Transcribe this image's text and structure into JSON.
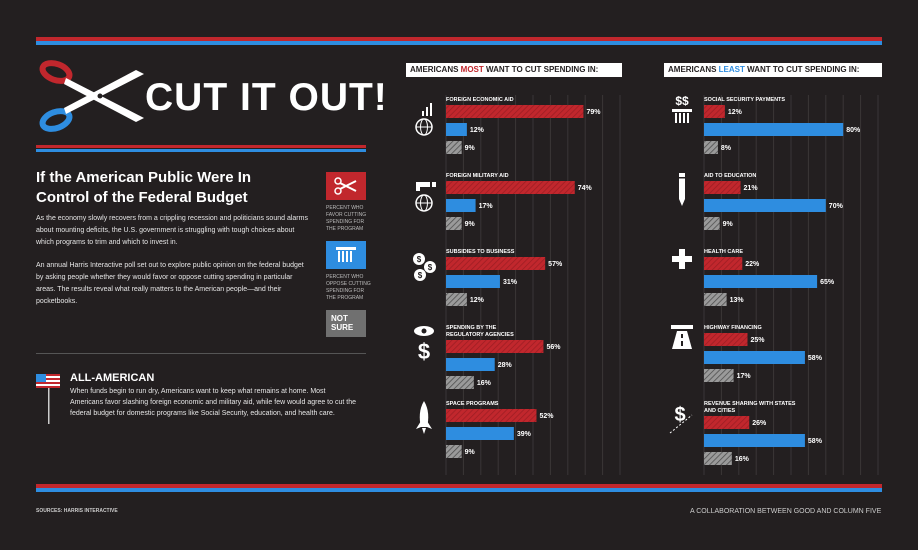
{
  "title": "CUT IT OUT!",
  "headline": "If the American Public Were In Control of the Federal Budget",
  "intro_1": "As the economy slowly recovers from a crippling recession and politicians sound alarms about mounting deficits, the U.S. government is struggling with tough choices about which programs to trim and which to invest in.",
  "intro_2": "An annual Harris Interactive poll set out to explore public opinion on the federal budget by asking people whether they would favor or oppose cutting spending in particular areas. The results reveal what really matters to the American people—and their pocketbooks.",
  "legend": {
    "favor": "PERCENT WHO FAVOR CUTTING SPENDING FOR THE PROGRAM",
    "oppose": "PERCENT WHO OPPOSE CUTTING SPENDING FOR THE PROGRAM",
    "not_sure": "NOT SURE"
  },
  "all_american": {
    "title": "ALL-AMERICAN",
    "text": "When funds begin to run dry, Americans want to keep what remains at home. Most Americans favor slashing foreign economic and military aid, while few would agree to cut the federal budget for domestic programs like Social Security, education, and health care."
  },
  "sources": "SOURCES: HARRIS INTERACTIVE",
  "credit": "A COLLABORATION BETWEEN GOOD AND COLUMN FIVE",
  "colors": {
    "favor": "#c1272d",
    "oppose": "#2e8de0",
    "not_sure": "#8a8a8a",
    "background": "#231f20"
  },
  "chart_data": [
    {
      "type": "bar",
      "title_prefix": "AMERICANS ",
      "title_highlight": "MOST",
      "title_suffix": " WANT TO CUT SPENDING IN:",
      "series_names": [
        "Favor cutting",
        "Oppose cutting",
        "Not sure"
      ],
      "unit": "%",
      "xlim": [
        0,
        100
      ],
      "groups": [
        {
          "label": "FOREIGN ECONOMIC AID",
          "icon": "globe-chart-icon",
          "values": [
            79,
            12,
            9
          ]
        },
        {
          "label": "FOREIGN MILITARY AID",
          "icon": "globe-gun-icon",
          "values": [
            74,
            17,
            9
          ]
        },
        {
          "label": "SUBSIDIES TO BUSINESS",
          "icon": "coins-icon",
          "values": [
            57,
            31,
            12
          ]
        },
        {
          "label": "SPENDING BY THE REGULATORY AGENCIES",
          "icon": "eye-dollar-icon",
          "values": [
            56,
            28,
            16
          ]
        },
        {
          "label": "SPACE PROGRAMS",
          "icon": "rocket-icon",
          "values": [
            52,
            39,
            9
          ]
        }
      ]
    },
    {
      "type": "bar",
      "title_prefix": "AMERICANS ",
      "title_highlight": "LEAST",
      "title_suffix": " WANT TO CUT SPENDING IN:",
      "series_names": [
        "Favor cutting",
        "Oppose cutting",
        "Not sure"
      ],
      "unit": "%",
      "xlim": [
        0,
        100
      ],
      "groups": [
        {
          "label": "SOCIAL SECURITY PAYMENTS",
          "icon": "social-security-icon",
          "values": [
            12,
            80,
            8
          ]
        },
        {
          "label": "AID TO EDUCATION",
          "icon": "pencil-icon",
          "values": [
            21,
            70,
            9
          ]
        },
        {
          "label": "HEALTH CARE",
          "icon": "cross-icon",
          "values": [
            22,
            65,
            13
          ]
        },
        {
          "label": "HIGHWAY FINANCING",
          "icon": "highway-icon",
          "values": [
            25,
            58,
            17
          ]
        },
        {
          "label": "REVENUE SHARING WITH STATES AND CITIES",
          "icon": "dollar-slash-icon",
          "values": [
            26,
            58,
            16
          ]
        }
      ]
    }
  ]
}
